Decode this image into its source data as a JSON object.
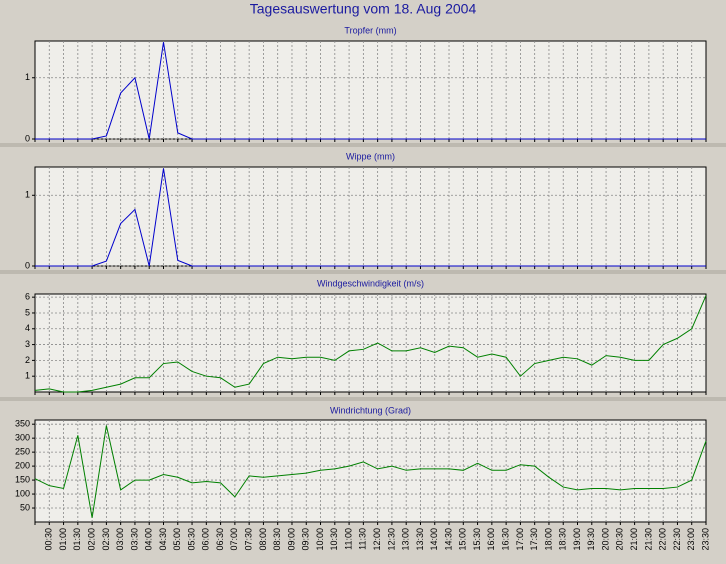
{
  "title": "Tagesauswertung vom 18. Aug 2004",
  "chart_data": [
    {
      "type": "line",
      "title": "Tropfer (mm)",
      "color": "#0000cc",
      "ylim": [
        0,
        1.6
      ],
      "yticks": [
        0,
        1
      ],
      "grid": true,
      "values": [
        0,
        0,
        0,
        0,
        0,
        0.05,
        0.75,
        1.0,
        0,
        1.58,
        0.1,
        0,
        0,
        0,
        0,
        0,
        0,
        0,
        0,
        0,
        0,
        0,
        0,
        0,
        0,
        0,
        0,
        0,
        0,
        0,
        0,
        0,
        0,
        0,
        0,
        0,
        0,
        0,
        0,
        0,
        0,
        0,
        0,
        0,
        0,
        0,
        0,
        0
      ]
    },
    {
      "type": "line",
      "title": "Wippe (mm)",
      "color": "#0000cc",
      "ylim": [
        0,
        1.4
      ],
      "yticks": [
        0,
        1
      ],
      "grid": true,
      "values": [
        0,
        0,
        0,
        0,
        0,
        0.07,
        0.6,
        0.8,
        0,
        1.38,
        0.08,
        0,
        0,
        0,
        0,
        0,
        0,
        0,
        0,
        0,
        0,
        0,
        0,
        0,
        0,
        0,
        0,
        0,
        0,
        0,
        0,
        0,
        0,
        0,
        0,
        0,
        0,
        0,
        0,
        0,
        0,
        0,
        0,
        0,
        0,
        0,
        0,
        0
      ]
    },
    {
      "type": "line",
      "title": "Windgeschwindigkeit (m/s)",
      "color": "#008000",
      "ylim": [
        0,
        6.2
      ],
      "yticks": [
        1,
        2,
        3,
        4,
        5,
        6
      ],
      "grid": true,
      "values": [
        0.1,
        0.2,
        0,
        0,
        0.1,
        0.3,
        0.5,
        0.9,
        0.9,
        1.8,
        1.9,
        1.3,
        1.0,
        0.9,
        0.3,
        0.5,
        1.8,
        2.2,
        2.1,
        2.2,
        2.2,
        2.0,
        2.6,
        2.7,
        3.1,
        2.6,
        2.6,
        2.8,
        2.5,
        2.9,
        2.8,
        2.2,
        2.4,
        2.2,
        1.0,
        1.8,
        2.0,
        2.2,
        2.1,
        1.7,
        2.3,
        2.2,
        2.0,
        2.0,
        3.0,
        3.4,
        4.0,
        6.1
      ]
    },
    {
      "type": "line",
      "title": "Windrichtung (Grad)",
      "color": "#008000",
      "ylim": [
        0,
        365
      ],
      "yticks": [
        50,
        100,
        150,
        200,
        250,
        300,
        350
      ],
      "grid": true,
      "categories": [
        null,
        "00:30",
        "01:00",
        "01:30",
        "02:00",
        "02:30",
        "03:00",
        "03:30",
        "04:00",
        "04:30",
        "05:00",
        "05:30",
        "06:00",
        "06:30",
        "07:00",
        "07:30",
        "08:00",
        "08:30",
        "09:00",
        "09:30",
        "10:00",
        "10:30",
        "11:00",
        "11:30",
        "12:00",
        "12:30",
        "13:00",
        "13:30",
        "14:00",
        "14:30",
        "15:00",
        "15:30",
        "16:00",
        "16:30",
        "17:00",
        "17:30",
        "18:00",
        "18:30",
        "19:00",
        "19:30",
        "20:00",
        "20:30",
        "21:00",
        "21:30",
        "22:00",
        "22:30",
        "23:00",
        "23:30"
      ],
      "values": [
        155,
        130,
        120,
        310,
        15,
        345,
        115,
        150,
        150,
        170,
        160,
        140,
        145,
        140,
        90,
        165,
        160,
        165,
        170,
        175,
        185,
        190,
        200,
        215,
        190,
        200,
        185,
        190,
        190,
        190,
        185,
        210,
        185,
        185,
        205,
        200,
        160,
        125,
        115,
        120,
        120,
        115,
        120,
        120,
        120,
        125,
        150,
        290
      ]
    }
  ]
}
